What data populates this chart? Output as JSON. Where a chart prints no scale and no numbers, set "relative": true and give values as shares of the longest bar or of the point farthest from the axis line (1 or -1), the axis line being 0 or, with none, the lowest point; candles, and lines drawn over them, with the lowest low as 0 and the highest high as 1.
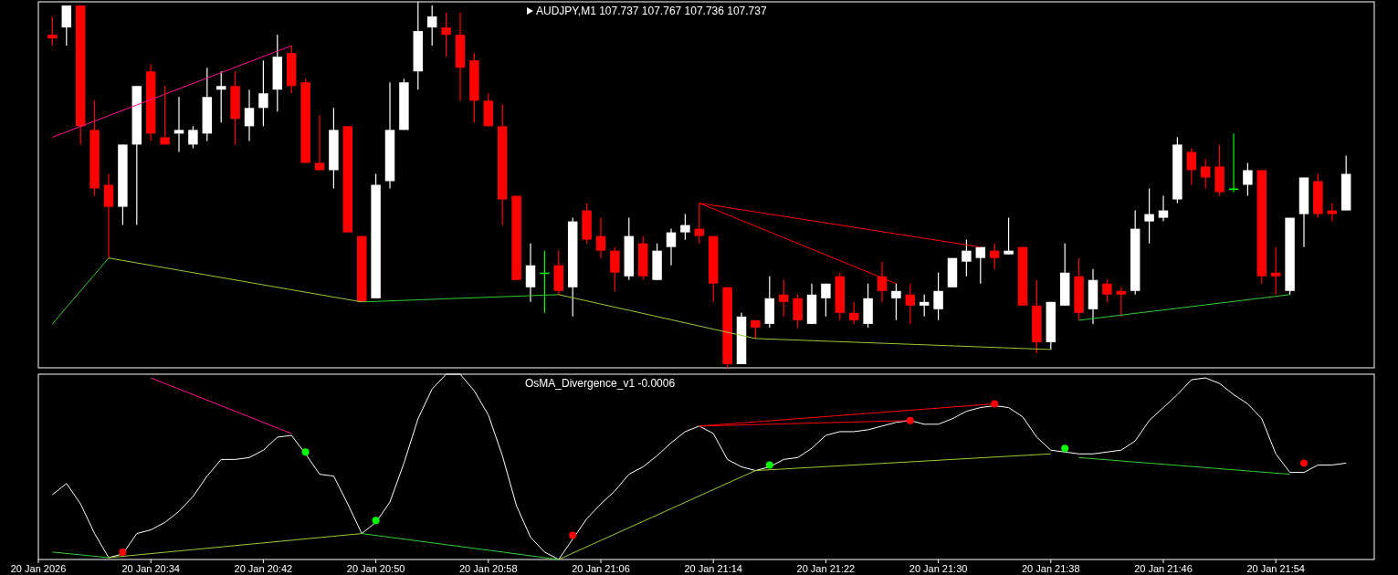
{
  "chart_data": [
    {
      "type": "candlestick",
      "title": "AUDJPY,M1  107.737 107.767 107.736 107.737",
      "relative": true,
      "tick_labels": false,
      "xlim": [
        "2026-01-20T20:26",
        "2026-01-20T22:01"
      ],
      "x": [
        "2026-01-20T20:27",
        "2026-01-20T20:28",
        "2026-01-20T20:29",
        "2026-01-20T20:30",
        "2026-01-20T20:31",
        "2026-01-20T20:32",
        "2026-01-20T20:33",
        "2026-01-20T20:34",
        "2026-01-20T20:35",
        "2026-01-20T20:36",
        "2026-01-20T20:37",
        "2026-01-20T20:38",
        "2026-01-20T20:39",
        "2026-01-20T20:40",
        "2026-01-20T20:41",
        "2026-01-20T20:42",
        "2026-01-20T20:43",
        "2026-01-20T20:44",
        "2026-01-20T20:45",
        "2026-01-20T20:46",
        "2026-01-20T20:47",
        "2026-01-20T20:48",
        "2026-01-20T20:49",
        "2026-01-20T20:50",
        "2026-01-20T20:51",
        "2026-01-20T20:52",
        "2026-01-20T20:53",
        "2026-01-20T20:54",
        "2026-01-20T20:55",
        "2026-01-20T20:56",
        "2026-01-20T20:57",
        "2026-01-20T20:58",
        "2026-01-20T20:59",
        "2026-01-20T21:00",
        "2026-01-20T21:01",
        "2026-01-20T21:02",
        "2026-01-20T21:03",
        "2026-01-20T21:04",
        "2026-01-20T21:05",
        "2026-01-20T21:06",
        "2026-01-20T21:07",
        "2026-01-20T21:08",
        "2026-01-20T21:09",
        "2026-01-20T21:10",
        "2026-01-20T21:11",
        "2026-01-20T21:12",
        "2026-01-20T21:13",
        "2026-01-20T21:14",
        "2026-01-20T21:15",
        "2026-01-20T21:16",
        "2026-01-20T21:17",
        "2026-01-20T21:18",
        "2026-01-20T21:19",
        "2026-01-20T21:20",
        "2026-01-20T21:21",
        "2026-01-20T21:22",
        "2026-01-20T21:23",
        "2026-01-20T21:24",
        "2026-01-20T21:25",
        "2026-01-20T21:26",
        "2026-01-20T21:27",
        "2026-01-20T21:28",
        "2026-01-20T21:29",
        "2026-01-20T21:30",
        "2026-01-20T21:31",
        "2026-01-20T21:32",
        "2026-01-20T21:33",
        "2026-01-20T21:34",
        "2026-01-20T21:35",
        "2026-01-20T21:36",
        "2026-01-20T21:37",
        "2026-01-20T21:38",
        "2026-01-20T21:39",
        "2026-01-20T21:40",
        "2026-01-20T21:41",
        "2026-01-20T21:42",
        "2026-01-20T21:43",
        "2026-01-20T21:44",
        "2026-01-20T21:45",
        "2026-01-20T21:46",
        "2026-01-20T21:47",
        "2026-01-20T21:48",
        "2026-01-20T21:49",
        "2026-01-20T21:50",
        "2026-01-20T21:51",
        "2026-01-20T21:52",
        "2026-01-20T21:53",
        "2026-01-20T21:54",
        "2026-01-20T21:55",
        "2026-01-20T21:56",
        "2026-01-20T21:57",
        "2026-01-20T21:58",
        "2026-01-20T21:59"
      ],
      "ohlc": [
        [
          0.91,
          0.96,
          0.88,
          0.9
        ],
        [
          0.93,
          0.99,
          0.88,
          0.99
        ],
        [
          0.99,
          0.99,
          0.61,
          0.66
        ],
        [
          0.65,
          0.73,
          0.47,
          0.49
        ],
        [
          0.5,
          0.53,
          0.3,
          0.44
        ],
        [
          0.44,
          0.61,
          0.39,
          0.61
        ],
        [
          0.61,
          0.77,
          0.39,
          0.77
        ],
        [
          0.81,
          0.83,
          0.62,
          0.64
        ],
        [
          0.63,
          0.77,
          0.61,
          0.61
        ],
        [
          0.64,
          0.74,
          0.59,
          0.65
        ],
        [
          0.61,
          0.66,
          0.6,
          0.65
        ],
        [
          0.64,
          0.82,
          0.62,
          0.74
        ],
        [
          0.76,
          0.81,
          0.67,
          0.77
        ],
        [
          0.77,
          0.81,
          0.61,
          0.68
        ],
        [
          0.66,
          0.76,
          0.62,
          0.71
        ],
        [
          0.71,
          0.84,
          0.66,
          0.75
        ],
        [
          0.76,
          0.91,
          0.7,
          0.85
        ],
        [
          0.86,
          0.88,
          0.75,
          0.77
        ],
        [
          0.78,
          0.79,
          0.56,
          0.56
        ],
        [
          0.56,
          0.69,
          0.54,
          0.54
        ],
        [
          0.54,
          0.71,
          0.49,
          0.65
        ],
        [
          0.66,
          0.66,
          0.37,
          0.37
        ],
        [
          0.36,
          0.36,
          0.18,
          0.18
        ],
        [
          0.19,
          0.53,
          0.19,
          0.5
        ],
        [
          0.51,
          0.78,
          0.49,
          0.65
        ],
        [
          0.65,
          0.79,
          0.65,
          0.78
        ],
        [
          0.81,
          1,
          0.76,
          0.92
        ],
        [
          0.93,
          0.99,
          0.88,
          0.96
        ],
        [
          0.93,
          0.97,
          0.85,
          0.91
        ],
        [
          0.91,
          0.97,
          0.73,
          0.82
        ],
        [
          0.84,
          0.86,
          0.67,
          0.73
        ],
        [
          0.73,
          0.75,
          0.66,
          0.66
        ],
        [
          0.66,
          0.72,
          0.39,
          0.46
        ],
        [
          0.47,
          0.47,
          0.24,
          0.24
        ],
        [
          0.22,
          0.34,
          0.18,
          0.28
        ],
        [
          0.26,
          0.32,
          0.15,
          0.26
        ],
        [
          0.28,
          0.32,
          0.2,
          0.21
        ],
        [
          0.22,
          0.41,
          0.14,
          0.4
        ],
        [
          0.43,
          0.45,
          0.34,
          0.35
        ],
        [
          0.36,
          0.41,
          0.3,
          0.32
        ],
        [
          0.32,
          0.33,
          0.21,
          0.26
        ],
        [
          0.25,
          0.41,
          0.24,
          0.36
        ],
        [
          0.34,
          0.36,
          0.24,
          0.25
        ],
        [
          0.24,
          0.34,
          0.24,
          0.32
        ],
        [
          0.33,
          0.38,
          0.28,
          0.37
        ],
        [
          0.37,
          0.42,
          0.35,
          0.39
        ],
        [
          0.38,
          0.45,
          0.34,
          0.36
        ],
        [
          0.36,
          0.36,
          0.18,
          0.23
        ],
        [
          0.22,
          0.22,
          0,
          0.01
        ],
        [
          0.01,
          0.15,
          0.01,
          0.14
        ],
        [
          0.13,
          0.13,
          0.08,
          0.11
        ],
        [
          0.12,
          0.25,
          0.11,
          0.19
        ],
        [
          0.2,
          0.24,
          0.14,
          0.18
        ],
        [
          0.19,
          0.2,
          0.11,
          0.13
        ],
        [
          0.12,
          0.23,
          0.12,
          0.2
        ],
        [
          0.19,
          0.23,
          0.14,
          0.23
        ],
        [
          0.25,
          0.26,
          0.13,
          0.15
        ],
        [
          0.15,
          0.18,
          0.12,
          0.13
        ],
        [
          0.12,
          0.23,
          0.11,
          0.19
        ],
        [
          0.25,
          0.29,
          0.18,
          0.21
        ],
        [
          0.19,
          0.23,
          0.13,
          0.21
        ],
        [
          0.2,
          0.23,
          0.12,
          0.17
        ],
        [
          0.17,
          0.2,
          0.14,
          0.18
        ],
        [
          0.16,
          0.26,
          0.13,
          0.21
        ],
        [
          0.22,
          0.3,
          0.22,
          0.3
        ],
        [
          0.29,
          0.35,
          0.25,
          0.32
        ],
        [
          0.3,
          0.33,
          0.23,
          0.33
        ],
        [
          0.32,
          0.34,
          0.27,
          0.3
        ],
        [
          0.31,
          0.41,
          0.31,
          0.32
        ],
        [
          0.33,
          0.33,
          0.17,
          0.17
        ],
        [
          0.17,
          0.24,
          0.04,
          0.07
        ],
        [
          0.07,
          0.18,
          0.05,
          0.18
        ],
        [
          0.17,
          0.34,
          0.17,
          0.26
        ],
        [
          0.25,
          0.3,
          0.13,
          0.15
        ],
        [
          0.16,
          0.27,
          0.12,
          0.24
        ],
        [
          0.23,
          0.24,
          0.18,
          0.2
        ],
        [
          0.21,
          0.22,
          0.14,
          0.2
        ],
        [
          0.21,
          0.43,
          0.2,
          0.38
        ],
        [
          0.4,
          0.49,
          0.34,
          0.42
        ],
        [
          0.41,
          0.47,
          0.4,
          0.43
        ],
        [
          0.46,
          0.63,
          0.45,
          0.61
        ],
        [
          0.59,
          0.6,
          0.5,
          0.54
        ],
        [
          0.55,
          0.57,
          0.49,
          0.52
        ],
        [
          0.55,
          0.61,
          0.47,
          0.48
        ],
        [
          0.49,
          0.64,
          0.48,
          0.49
        ],
        [
          0.5,
          0.56,
          0.47,
          0.54
        ],
        [
          0.54,
          0.54,
          0.23,
          0.25
        ],
        [
          0.26,
          0.33,
          0.2,
          0.25
        ],
        [
          0.21,
          0.41,
          0.2,
          0.41
        ],
        [
          0.42,
          0.52,
          0.33,
          0.52
        ],
        [
          0.51,
          0.53,
          0.41,
          0.42
        ],
        [
          0.43,
          0.45,
          0.4,
          0.42
        ],
        [
          0.43,
          0.58,
          0.43,
          0.53
        ]
      ],
      "colors": [
        "#ff0000",
        "#ffffff",
        "#ff0000",
        "#ff0000",
        "#ff0000",
        "#ffffff",
        "#ffffff",
        "#ff0000",
        "#ff0000",
        "#ffffff",
        "#ffffff",
        "#ffffff",
        "#ffffff",
        "#ff0000",
        "#ffffff",
        "#ffffff",
        "#ffffff",
        "#ff0000",
        "#ff0000",
        "#ff0000",
        "#ffffff",
        "#ff0000",
        "#ff0000",
        "#ffffff",
        "#ffffff",
        "#ffffff",
        "#ffffff",
        "#ffffff",
        "#ff0000",
        "#ff0000",
        "#ff0000",
        "#ff0000",
        "#ff0000",
        "#ff0000",
        "#ffffff",
        "#00ff00",
        "#ff0000",
        "#ffffff",
        "#ff0000",
        "#ff0000",
        "#ff0000",
        "#ffffff",
        "#ff0000",
        "#ffffff",
        "#ffffff",
        "#ffffff",
        "#ff0000",
        "#ff0000",
        "#ff0000",
        "#ffffff",
        "#ff0000",
        "#ffffff",
        "#ff0000",
        "#ff0000",
        "#ffffff",
        "#ffffff",
        "#ff0000",
        "#ff0000",
        "#ffffff",
        "#ff0000",
        "#ffffff",
        "#ff0000",
        "#ffffff",
        "#ffffff",
        "#ffffff",
        "#ffffff",
        "#ffffff",
        "#ff0000",
        "#ffffff",
        "#ff0000",
        "#ff0000",
        "#ffffff",
        "#ffffff",
        "#ff0000",
        "#ffffff",
        "#ff0000",
        "#ff0000",
        "#ffffff",
        "#ffffff",
        "#ffffff",
        "#ffffff",
        "#ff0000",
        "#ff0000",
        "#ff0000",
        "#00ff00",
        "#ffffff",
        "#ff0000",
        "#ff0000",
        "#ffffff",
        "#ffffff",
        "#ff0000",
        "#ff0000",
        "#ffffff"
      ],
      "series": [
        {
          "type": "line",
          "color": "#ff1493",
          "x": [
            "2026-01-20T20:27",
            "2026-01-20T20:44"
          ],
          "values": [
            0.63,
            0.88
          ]
        },
        {
          "type": "line",
          "color": "#32cd32",
          "x": [
            "2026-01-20T20:27",
            "2026-01-20T20:31"
          ],
          "values": [
            0.12,
            0.3
          ]
        },
        {
          "type": "line",
          "color": "#9acd32",
          "x": [
            "2026-01-20T20:31",
            "2026-01-20T20:49"
          ],
          "values": [
            0.3,
            0.18
          ]
        },
        {
          "type": "line",
          "color": "#32cd32",
          "x": [
            "2026-01-20T20:49",
            "2026-01-20T21:03"
          ],
          "values": [
            0.18,
            0.2
          ]
        },
        {
          "type": "line",
          "color": "#9acd32",
          "x": [
            "2026-01-20T21:03",
            "2026-01-20T21:17",
            "2026-01-20T21:38"
          ],
          "values": [
            0.2,
            0.08,
            0.05
          ]
        },
        {
          "type": "line",
          "color": "#ff0000",
          "x": [
            "2026-01-20T21:13",
            "2026-01-20T21:33"
          ],
          "values": [
            0.45,
            0.33
          ]
        },
        {
          "type": "line",
          "color": "#ff0000",
          "x": [
            "2026-01-20T21:13",
            "2026-01-20T21:27"
          ],
          "values": [
            0.45,
            0.23
          ]
        },
        {
          "type": "line",
          "color": "#32cd32",
          "x": [
            "2026-01-20T21:40",
            "2026-01-20T21:55"
          ],
          "values": [
            0.13,
            0.2
          ]
        }
      ]
    },
    {
      "type": "line",
      "title": "OsMA_Divergence_v1 -0.0006",
      "relative": true,
      "tick_labels": "x",
      "xlim": [
        "2026-01-20T20:26",
        "2026-01-20T22:01"
      ],
      "xticks": [
        {
          "value": "2026-01-20T20:26",
          "label": "20 Jan 2026"
        },
        {
          "value": "2026-01-20T20:34",
          "label": "20 Jan 20:34"
        },
        {
          "value": "2026-01-20T20:42",
          "label": "20 Jan 20:42"
        },
        {
          "value": "2026-01-20T20:50",
          "label": "20 Jan 20:50"
        },
        {
          "value": "2026-01-20T20:58",
          "label": "20 Jan 20:58"
        },
        {
          "value": "2026-01-20T21:06",
          "label": "20 Jan 21:06"
        },
        {
          "value": "2026-01-20T21:14",
          "label": "20 Jan 21:14"
        },
        {
          "value": "2026-01-20T21:22",
          "label": "20 Jan 21:22"
        },
        {
          "value": "2026-01-20T21:30",
          "label": "20 Jan 21:30"
        },
        {
          "value": "2026-01-20T21:38",
          "label": "20 Jan 21:38"
        },
        {
          "value": "2026-01-20T21:46",
          "label": "20 Jan 21:46"
        },
        {
          "value": "2026-01-20T21:54",
          "label": "20 Jan 21:54"
        }
      ],
      "x": [
        "2026-01-20T20:27",
        "2026-01-20T20:28",
        "2026-01-20T20:29",
        "2026-01-20T20:30",
        "2026-01-20T20:31",
        "2026-01-20T20:32",
        "2026-01-20T20:33",
        "2026-01-20T20:34",
        "2026-01-20T20:35",
        "2026-01-20T20:36",
        "2026-01-20T20:37",
        "2026-01-20T20:38",
        "2026-01-20T20:39",
        "2026-01-20T20:40",
        "2026-01-20T20:41",
        "2026-01-20T20:42",
        "2026-01-20T20:43",
        "2026-01-20T20:44",
        "2026-01-20T20:45",
        "2026-01-20T20:46",
        "2026-01-20T20:47",
        "2026-01-20T20:48",
        "2026-01-20T20:49",
        "2026-01-20T20:50",
        "2026-01-20T20:51",
        "2026-01-20T20:52",
        "2026-01-20T20:53",
        "2026-01-20T20:54",
        "2026-01-20T20:55",
        "2026-01-20T20:56",
        "2026-01-20T20:57",
        "2026-01-20T20:58",
        "2026-01-20T20:59",
        "2026-01-20T21:00",
        "2026-01-20T21:01",
        "2026-01-20T21:02",
        "2026-01-20T21:03",
        "2026-01-20T21:04",
        "2026-01-20T21:05",
        "2026-01-20T21:06",
        "2026-01-20T21:07",
        "2026-01-20T21:08",
        "2026-01-20T21:09",
        "2026-01-20T21:10",
        "2026-01-20T21:11",
        "2026-01-20T21:12",
        "2026-01-20T21:13",
        "2026-01-20T21:14",
        "2026-01-20T21:15",
        "2026-01-20T21:16",
        "2026-01-20T21:17",
        "2026-01-20T21:18",
        "2026-01-20T21:19",
        "2026-01-20T21:20",
        "2026-01-20T21:21",
        "2026-01-20T21:22",
        "2026-01-20T21:23",
        "2026-01-20T21:24",
        "2026-01-20T21:25",
        "2026-01-20T21:26",
        "2026-01-20T21:27",
        "2026-01-20T21:28",
        "2026-01-20T21:29",
        "2026-01-20T21:30",
        "2026-01-20T21:31",
        "2026-01-20T21:32",
        "2026-01-20T21:33",
        "2026-01-20T21:34",
        "2026-01-20T21:35",
        "2026-01-20T21:36",
        "2026-01-20T21:37",
        "2026-01-20T21:38",
        "2026-01-20T21:39",
        "2026-01-20T21:40",
        "2026-01-20T21:41",
        "2026-01-20T21:42",
        "2026-01-20T21:43",
        "2026-01-20T21:44",
        "2026-01-20T21:45",
        "2026-01-20T21:46",
        "2026-01-20T21:47",
        "2026-01-20T21:48",
        "2026-01-20T21:49",
        "2026-01-20T21:50",
        "2026-01-20T21:51",
        "2026-01-20T21:52",
        "2026-01-20T21:53",
        "2026-01-20T21:54",
        "2026-01-20T21:55",
        "2026-01-20T21:56",
        "2026-01-20T21:57",
        "2026-01-20T21:58",
        "2026-01-20T21:59"
      ],
      "series": [
        {
          "color": "#ffffff",
          "values": [
            0.35,
            0.41,
            0.3,
            0.14,
            0.01,
            0.03,
            0.14,
            0.16,
            0.2,
            0.26,
            0.34,
            0.45,
            0.54,
            0.54,
            0.55,
            0.59,
            0.66,
            0.67,
            0.57,
            0.46,
            0.45,
            0.3,
            0.14,
            0.2,
            0.31,
            0.52,
            0.76,
            0.92,
            1,
            1,
            0.91,
            0.78,
            0.56,
            0.29,
            0.12,
            0.04,
            0,
            0.11,
            0.22,
            0.3,
            0.37,
            0.46,
            0.5,
            0.56,
            0.63,
            0.69,
            0.72,
            0.68,
            0.54,
            0.5,
            0.48,
            0.5,
            0.54,
            0.55,
            0.6,
            0.67,
            0.69,
            0.69,
            0.7,
            0.72,
            0.74,
            0.75,
            0.73,
            0.73,
            0.76,
            0.8,
            0.82,
            0.83,
            0.82,
            0.77,
            0.66,
            0.59,
            0.58,
            0.57,
            0.57,
            0.58,
            0.59,
            0.64,
            0.75,
            0.82,
            0.89,
            0.97,
            0.98,
            0.95,
            0.89,
            0.84,
            0.76,
            0.57,
            0.47,
            0.47,
            0.51,
            0.51,
            0.52
          ]
        },
        {
          "type": "line",
          "color": "#ff1493",
          "x": [
            "2026-01-20T20:34",
            "2026-01-20T20:44"
          ],
          "values": [
            0.98,
            0.68
          ]
        },
        {
          "type": "line",
          "color": "#32cd32",
          "x": [
            "2026-01-20T20:27",
            "2026-01-20T20:31"
          ],
          "values": [
            0.04,
            0.01
          ]
        },
        {
          "type": "line",
          "color": "#9acd32",
          "x": [
            "2026-01-20T20:31",
            "2026-01-20T20:49"
          ],
          "values": [
            0.01,
            0.14
          ]
        },
        {
          "type": "line",
          "color": "#32cd32",
          "x": [
            "2026-01-20T20:49",
            "2026-01-20T21:03"
          ],
          "values": [
            0.14,
            0
          ]
        },
        {
          "type": "line",
          "color": "#9acd32",
          "x": [
            "2026-01-20T21:03",
            "2026-01-20T21:17",
            "2026-01-20T21:38"
          ],
          "values": [
            0,
            0.48,
            0.57
          ]
        },
        {
          "type": "line",
          "color": "#ff0000",
          "x": [
            "2026-01-20T21:13",
            "2026-01-20T21:34"
          ],
          "values": [
            0.72,
            0.84
          ]
        },
        {
          "type": "line",
          "color": "#ff0000",
          "x": [
            "2026-01-20T21:13",
            "2026-01-20T21:28"
          ],
          "values": [
            0.72,
            0.75
          ]
        },
        {
          "type": "line",
          "color": "#32cd32",
          "x": [
            "2026-01-20T21:40",
            "2026-01-20T21:55"
          ],
          "values": [
            0.55,
            0.46
          ]
        },
        {
          "type": "scatter",
          "color": "#00ff00",
          "x": [
            "2026-01-20T20:45",
            "2026-01-20T20:50",
            "2026-01-20T21:18",
            "2026-01-20T21:39"
          ],
          "values": [
            0.58,
            0.21,
            0.51,
            0.6
          ]
        },
        {
          "type": "scatter",
          "color": "#ff0000",
          "x": [
            "2026-01-20T20:32",
            "2026-01-20T21:04",
            "2026-01-20T21:28",
            "2026-01-20T21:34",
            "2026-01-20T21:56"
          ],
          "values": [
            0.04,
            0.13,
            0.75,
            0.84,
            0.52
          ]
        }
      ]
    }
  ]
}
